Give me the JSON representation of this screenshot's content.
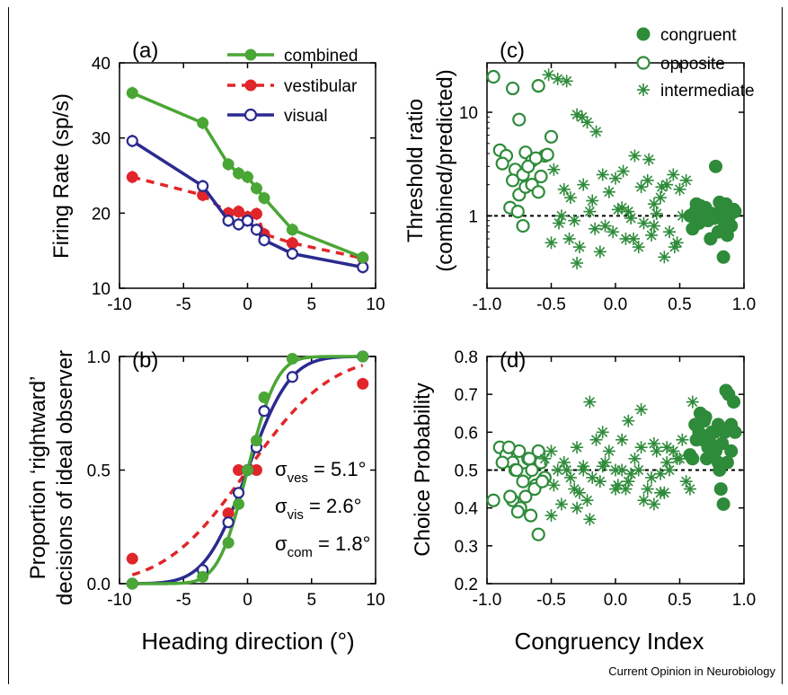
{
  "colors": {
    "combined": "#4aa635",
    "vestibular": "#e0262a",
    "visual": "#2a2a8f",
    "congruency": "#2e8b3a"
  },
  "credit": "Current Opinion in Neurobiology",
  "chart_data": [
    {
      "id": "a",
      "type": "line",
      "panel_label": "(a)",
      "xlabel": "",
      "ylabel": "Firing Rate (sp/s)",
      "xlim": [
        -10,
        10
      ],
      "ylim": [
        10,
        40
      ],
      "xticks": [
        -10,
        -5,
        0,
        5,
        10
      ],
      "yticks": [
        10,
        20,
        30,
        40
      ],
      "legend_position": "top-right",
      "series": [
        {
          "name": "combined",
          "style": "solid-filled",
          "color": "#4aa635",
          "x": [
            -9,
            -3.5,
            -1.5,
            -0.7,
            0,
            0.7,
            1.3,
            3.5,
            9
          ],
          "y": [
            36,
            32,
            26.5,
            25.3,
            24.8,
            23.3,
            22,
            17.8,
            14.1
          ]
        },
        {
          "name": "vestibular",
          "style": "dashed-filled",
          "color": "#e0262a",
          "x": [
            -9,
            -3.5,
            -1.5,
            -0.7,
            0,
            0.7,
            1.3,
            3.5,
            9
          ],
          "y": [
            24.8,
            22.4,
            20,
            20.2,
            19.5,
            19.9,
            17.2,
            16,
            14
          ]
        },
        {
          "name": "visual",
          "style": "solid-open",
          "color": "#2a2a8f",
          "x": [
            -9,
            -3.5,
            -1.5,
            -0.7,
            0,
            0.7,
            1.3,
            3.5,
            9
          ],
          "y": [
            29.6,
            23.6,
            19,
            18.5,
            19,
            17.8,
            16.4,
            14.6,
            12.8
          ]
        }
      ]
    },
    {
      "id": "b",
      "type": "line",
      "panel_label": "(b)",
      "xlabel": "Heading direction (°)",
      "ylabel": "Proportion ‘rightward’ decisions of ideal observer",
      "ylabel_lines": [
        "Proportion ‘rightward’",
        "decisions of ideal observer"
      ],
      "xlim": [
        -10,
        10
      ],
      "ylim": [
        0,
        1
      ],
      "xticks": [
        -10,
        -5,
        0,
        5,
        10
      ],
      "yticks": [
        0,
        0.5,
        1
      ],
      "ytick_labels": [
        "0.0",
        "0.5",
        "1.0"
      ],
      "annotations": [
        {
          "symbol": "σ",
          "sub": "ves",
          "text": " = 5.1°",
          "sigma": 5.1
        },
        {
          "symbol": "σ",
          "sub": "vis",
          "text": " = 2.6°",
          "sigma": 2.6
        },
        {
          "symbol": "σ",
          "sub": "com",
          "text": " = 1.8°",
          "sigma": 1.8
        }
      ],
      "series": [
        {
          "name": "vestibular",
          "color": "#e0262a",
          "style": "dashed-filled",
          "sigma": 5.1,
          "x": [
            -9,
            -1.5,
            -0.7,
            0.7,
            9
          ],
          "y": [
            0.11,
            0.31,
            0.5,
            0.5,
            0.88
          ]
        },
        {
          "name": "visual",
          "color": "#2a2a8f",
          "style": "solid-open",
          "sigma": 2.6,
          "x": [
            -9,
            -3.5,
            -1.5,
            -0.7,
            0,
            0.7,
            1.3,
            3.5,
            9
          ],
          "y": [
            0.0,
            0.06,
            0.27,
            0.4,
            0.5,
            0.6,
            0.76,
            0.91,
            1.0
          ]
        },
        {
          "name": "combined",
          "color": "#4aa635",
          "style": "solid-filled",
          "sigma": 1.8,
          "x": [
            -9,
            -3.5,
            -1.5,
            -0.7,
            0,
            0.7,
            1.3,
            3.5,
            9
          ],
          "y": [
            0.0,
            0.03,
            0.18,
            0.35,
            0.5,
            0.63,
            0.82,
            0.99,
            1.0
          ]
        }
      ]
    },
    {
      "id": "c",
      "type": "scatter",
      "panel_label": "(c)",
      "xlabel": "",
      "ylabel": "Threshold ratio (combined/predicted)",
      "ylabel_lines": [
        "Threshold ratio",
        "(combined/predicted)"
      ],
      "xlim": [
        -1,
        1
      ],
      "ylim": [
        0.2,
        30
      ],
      "yscale": "log",
      "xticks": [
        -1,
        -0.5,
        0,
        0.5,
        1
      ],
      "xtick_labels": [
        "-1.0",
        "-0.5",
        "0.0",
        "0.5",
        "1.0"
      ],
      "yticks": [
        1,
        10
      ],
      "ytick_labels": [
        "1",
        "10"
      ],
      "reference_line": 1,
      "legend_position": "top-right",
      "series": [
        {
          "name": "congruent",
          "marker": "filled-circle",
          "x": [
            0.58,
            0.62,
            0.65,
            0.68,
            0.7,
            0.72,
            0.75,
            0.78,
            0.8,
            0.82,
            0.84,
            0.86,
            0.88,
            0.9,
            0.92,
            0.6,
            0.66,
            0.74,
            0.8,
            0.85,
            0.9,
            0.63,
            0.71,
            0.77,
            0.83,
            0.87,
            0.93,
            0.81
          ],
          "y": [
            1.0,
            1.1,
            0.85,
            0.95,
            1.2,
            0.9,
            1.05,
            3.0,
            0.7,
            1.1,
            0.4,
            1.3,
            0.95,
            1.05,
            1.15,
            0.75,
            1.25,
            0.6,
            1.0,
            0.85,
            0.8,
            1.3,
            1.0,
            0.95,
            1.2,
            0.65,
            1.1,
            1.35
          ]
        },
        {
          "name": "opposite",
          "marker": "open-circle",
          "x": [
            -0.95,
            -0.8,
            -0.75,
            -0.6,
            -0.9,
            -0.85,
            -0.7,
            -0.65,
            -0.55,
            -0.5,
            -0.88,
            -0.78,
            -0.72,
            -0.68,
            -0.62,
            -0.58,
            -0.53,
            -0.8,
            -0.75,
            -0.7,
            -0.65,
            -0.6,
            -0.82,
            -0.76,
            -0.72
          ],
          "y": [
            22,
            17,
            8.5,
            18,
            4.3,
            3.8,
            4.1,
            3.4,
            3.8,
            5.8,
            3.2,
            2.8,
            2.5,
            3.0,
            3.6,
            2.4,
            3.9,
            2.2,
            1.6,
            1.9,
            2.0,
            1.7,
            1.2,
            1.1,
            0.8
          ]
        },
        {
          "name": "intermediate",
          "marker": "asterisk",
          "x": [
            -0.52,
            -0.45,
            -0.38,
            -0.3,
            -0.22,
            -0.15,
            -0.48,
            -0.4,
            -0.35,
            -0.25,
            -0.18,
            -0.1,
            -0.05,
            0.0,
            0.05,
            0.1,
            0.15,
            0.2,
            0.25,
            0.3,
            0.35,
            0.4,
            0.45,
            0.5,
            0.55,
            -0.42,
            -0.32,
            -0.2,
            -0.08,
            0.02,
            0.12,
            0.22,
            0.32,
            0.42,
            0.52,
            -0.5,
            -0.36,
            -0.28,
            -0.12,
            0.08,
            0.18,
            0.28,
            0.38,
            0.48,
            -0.44,
            -0.3,
            -0.16,
            -0.02,
            0.14,
            0.3,
            0.46,
            -0.26,
            0.06,
            0.26,
            0.36
          ],
          "y": [
            23,
            21,
            20,
            9.5,
            8,
            6.5,
            2.8,
            1.8,
            1.5,
            2.0,
            1.4,
            2.5,
            1.7,
            2.3,
            1.2,
            1.1,
            3.8,
            1.9,
            2.2,
            1.3,
            1.5,
            2.0,
            2.5,
            1.8,
            2.2,
            1.0,
            0.9,
            1.1,
            0.8,
            1.15,
            0.95,
            0.85,
            1.05,
            0.7,
            1.0,
            0.55,
            0.6,
            0.5,
            0.45,
            0.6,
            0.5,
            0.65,
            0.4,
            0.55,
            0.85,
            0.35,
            0.75,
            0.7,
            0.6,
            0.8,
            0.5,
            9.0,
            2.7,
            3.5,
            1.9
          ]
        }
      ]
    },
    {
      "id": "d",
      "type": "scatter",
      "panel_label": "(d)",
      "xlabel": "Congruency Index",
      "ylabel": "Choice Probability",
      "xlim": [
        -1,
        1
      ],
      "ylim": [
        0.2,
        0.8
      ],
      "xticks": [
        -1,
        -0.5,
        0,
        0.5,
        1
      ],
      "xtick_labels": [
        "-1.0",
        "-0.5",
        "0.0",
        "0.5",
        "1.0"
      ],
      "yticks": [
        0.2,
        0.3,
        0.4,
        0.5,
        0.6,
        0.7,
        0.8
      ],
      "ytick_labels": [
        "0.2",
        "0.3",
        "0.4",
        "0.5",
        "0.6",
        "0.7",
        "0.8"
      ],
      "reference_line": 0.5,
      "series": [
        {
          "name": "congruent",
          "marker": "filled-circle",
          "x": [
            0.58,
            0.62,
            0.65,
            0.68,
            0.7,
            0.72,
            0.75,
            0.78,
            0.8,
            0.82,
            0.84,
            0.86,
            0.88,
            0.9,
            0.92,
            0.6,
            0.66,
            0.74,
            0.8,
            0.85,
            0.9,
            0.63,
            0.71,
            0.77,
            0.83,
            0.87,
            0.93,
            0.81,
            0.69
          ],
          "y": [
            0.54,
            0.62,
            0.6,
            0.58,
            0.64,
            0.56,
            0.6,
            0.55,
            0.62,
            0.45,
            0.41,
            0.71,
            0.7,
            0.62,
            0.68,
            0.53,
            0.65,
            0.57,
            0.52,
            0.6,
            0.55,
            0.58,
            0.53,
            0.6,
            0.57,
            0.52,
            0.6,
            0.5,
            0.63
          ]
        },
        {
          "name": "opposite",
          "marker": "open-circle",
          "x": [
            -0.95,
            -0.9,
            -0.85,
            -0.8,
            -0.78,
            -0.75,
            -0.7,
            -0.68,
            -0.65,
            -0.62,
            -0.6,
            -0.58,
            -0.55,
            -0.88,
            -0.83,
            -0.77,
            -0.72,
            -0.67,
            -0.63,
            -0.57,
            -0.8,
            -0.74,
            -0.7,
            -0.66,
            -0.6,
            -0.82,
            -0.76
          ],
          "y": [
            0.42,
            0.56,
            0.54,
            0.52,
            0.5,
            0.55,
            0.49,
            0.53,
            0.5,
            0.46,
            0.55,
            0.52,
            0.48,
            0.52,
            0.56,
            0.5,
            0.47,
            0.53,
            0.45,
            0.47,
            0.42,
            0.4,
            0.43,
            0.38,
            0.33,
            0.43,
            0.39
          ]
        },
        {
          "name": "intermediate",
          "marker": "asterisk",
          "x": [
            -0.55,
            -0.5,
            -0.45,
            -0.4,
            -0.35,
            -0.3,
            -0.25,
            -0.2,
            -0.15,
            -0.1,
            -0.05,
            0.0,
            0.05,
            0.1,
            0.15,
            0.2,
            0.25,
            0.3,
            0.35,
            0.4,
            0.45,
            0.5,
            0.55,
            0.6,
            -0.48,
            -0.38,
            -0.28,
            -0.18,
            -0.08,
            0.02,
            0.12,
            0.22,
            0.32,
            0.42,
            0.52,
            -0.42,
            -0.32,
            -0.22,
            -0.12,
            0.08,
            0.18,
            0.28,
            0.38,
            0.48,
            0.58,
            -0.5,
            -0.3,
            -0.1,
            0.1,
            0.3,
            -0.2,
            0.0,
            0.2,
            0.4,
            -0.25,
            0.05,
            0.35
          ],
          "y": [
            0.53,
            0.55,
            0.5,
            0.52,
            0.48,
            0.56,
            0.5,
            0.68,
            0.58,
            0.51,
            0.55,
            0.5,
            0.58,
            0.47,
            0.53,
            0.56,
            0.45,
            0.57,
            0.49,
            0.52,
            0.55,
            0.53,
            0.47,
            0.68,
            0.46,
            0.5,
            0.44,
            0.48,
            0.52,
            0.46,
            0.49,
            0.42,
            0.55,
            0.5,
            0.58,
            0.41,
            0.45,
            0.42,
            0.47,
            0.45,
            0.5,
            0.48,
            0.44,
            0.53,
            0.45,
            0.38,
            0.4,
            0.6,
            0.63,
            0.41,
            0.37,
            0.45,
            0.66,
            0.56,
            0.51,
            0.5,
            0.44
          ]
        }
      ]
    }
  ]
}
